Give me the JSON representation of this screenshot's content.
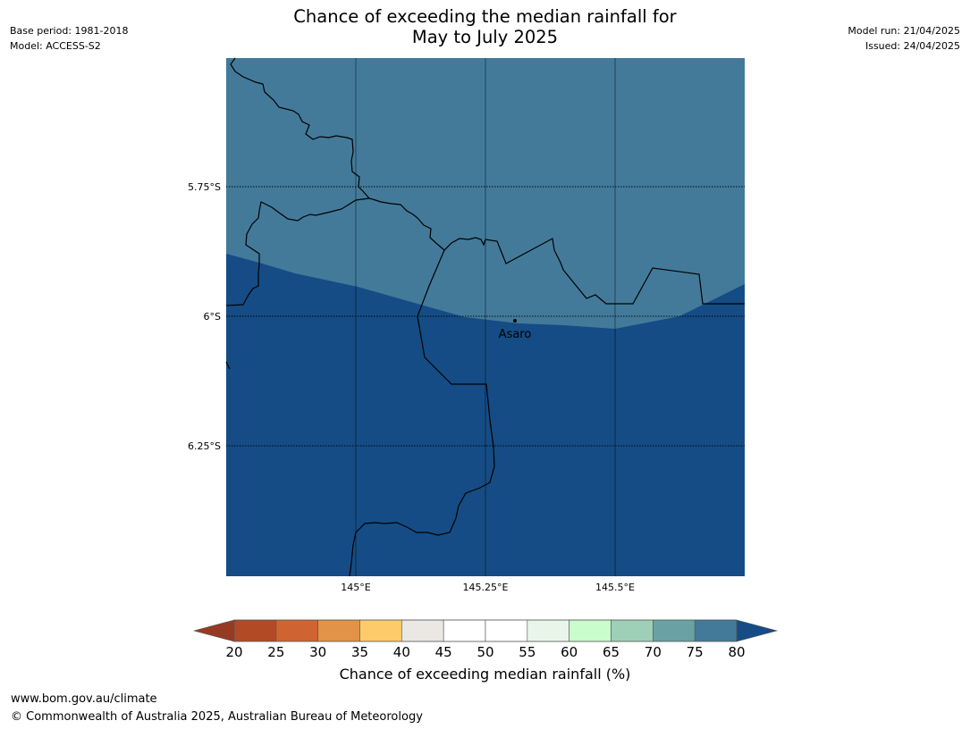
{
  "header": {
    "title_line1": "Chance of exceeding the median rainfall for",
    "title_line2": "May to July 2025",
    "left_meta": [
      "Base period: 1981-2018",
      "Model: ACCESS-S2"
    ],
    "right_meta": [
      "Model run: 21/04/2025",
      "Issued: 24/04/2025"
    ]
  },
  "map": {
    "latitude_labels": [
      "5.75°S",
      "6°S",
      "6.25°S"
    ],
    "longitude_labels": [
      "145°E",
      "145.25°E",
      "145.5°E"
    ],
    "place_label": "Asaro",
    "colors": {
      "band_75_80": "#437a9a",
      "band_above_80": "#154c85",
      "border_line": "#000000"
    }
  },
  "colorbar": {
    "title": "Chance of exceeding median rainfall (%)",
    "tick_labels": [
      "20",
      "25",
      "30",
      "35",
      "40",
      "45",
      "50",
      "55",
      "60",
      "65",
      "70",
      "75",
      "80"
    ],
    "low_extension_color": "#963a23",
    "high_extension_color": "#154c85",
    "segment_colors": [
      "#b34a26",
      "#cf6432",
      "#e29347",
      "#fdcb69",
      "#ebe7e3",
      "#ffffff",
      "#ffffff",
      "#e9f5e9",
      "#c9fdcb",
      "#9ed0b7",
      "#6aa2a4",
      "#437a9a"
    ]
  },
  "footer": {
    "url": "www.bom.gov.au/climate",
    "copyright": "© Commonwealth of Australia 2025, Australian Bureau of Meteorology"
  }
}
